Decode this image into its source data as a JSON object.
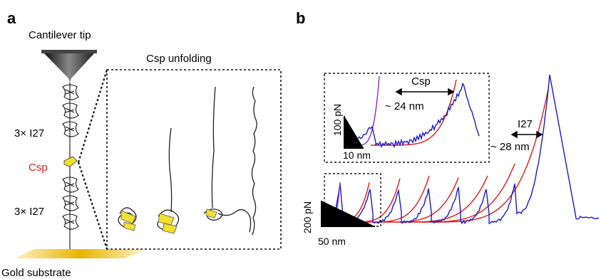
{
  "panel_a": {
    "letter": "a",
    "cantilever_label": "Cantilever tip",
    "unfolding_title": "Csp unfolding",
    "i27_top_label": "3× I27",
    "csp_label": "Csp",
    "i27_bottom_label": "3× I27",
    "substrate_label": "Gold substrate",
    "colors": {
      "csp": "#e02020",
      "gold": "#e8b400",
      "cantilever": "#333333",
      "beta": "#f2e030"
    }
  },
  "panel_b": {
    "letter": "b",
    "inset": {
      "csp_label": "Csp",
      "contour_label": "~ 24 nm",
      "y_scale_label": "100 pN",
      "x_scale_label": "10 nm"
    },
    "i27_label": "I27",
    "i27_contour_label": "~ 28 nm",
    "y_scale_label": "200 pN",
    "x_scale_label": "50 nm",
    "colors": {
      "trace": "#1a1acc",
      "wlc_fit": "#e01818",
      "csp_fit": "#8b2bd6"
    }
  }
}
